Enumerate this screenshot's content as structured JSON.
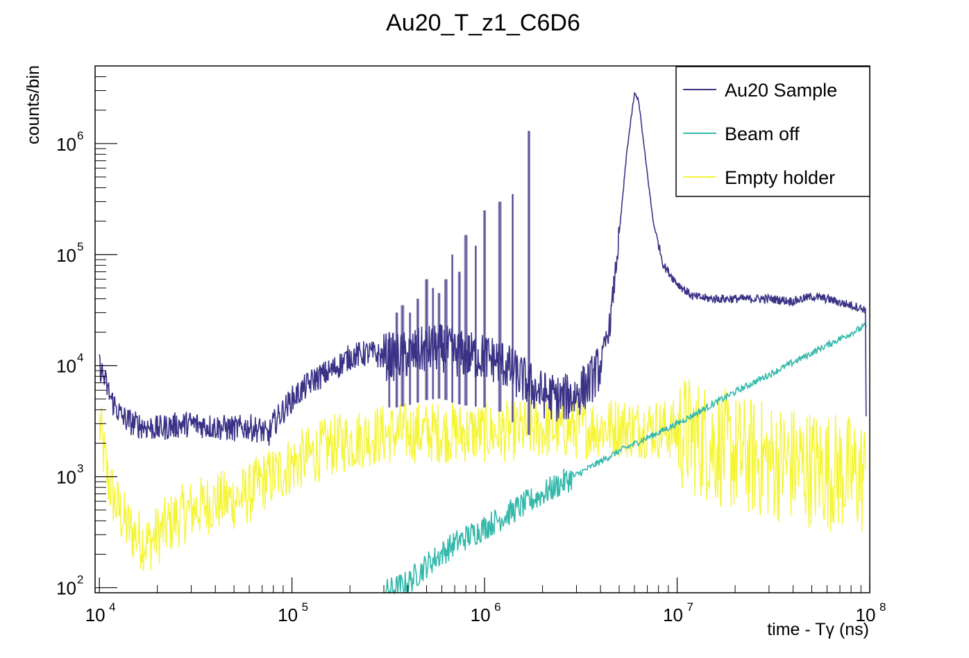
{
  "chart_data": {
    "type": "line",
    "title": "Au20_T_z1_C6D6",
    "xlabel": "time - Tγ (ns)",
    "ylabel": "counts/bin",
    "xscale": "log",
    "yscale": "log",
    "xlim": [
      9500,
      100000000
    ],
    "ylim": [
      90,
      5000000
    ],
    "x_ticks": [
      {
        "value": 10000,
        "base": "10",
        "exp": "4"
      },
      {
        "value": 100000,
        "base": "10",
        "exp": "5"
      },
      {
        "value": 1000000,
        "base": "10",
        "exp": "6"
      },
      {
        "value": 10000000,
        "base": "10",
        "exp": "7"
      },
      {
        "value": 100000000,
        "base": "10",
        "exp": "8"
      }
    ],
    "y_ticks": [
      {
        "value": 100,
        "base": "10",
        "exp": "2"
      },
      {
        "value": 1000,
        "base": "10",
        "exp": "3"
      },
      {
        "value": 10000,
        "base": "10",
        "exp": "4"
      },
      {
        "value": 100000,
        "base": "10",
        "exp": "5"
      },
      {
        "value": 1000000,
        "base": "10",
        "exp": "6"
      }
    ],
    "legend": {
      "position": "top-right"
    },
    "series": [
      {
        "name": "Au20 Sample",
        "color": "#3b3286",
        "fill_color": "#8d88b6",
        "x": [
          10000,
          10500,
          11500,
          13000,
          15000,
          18000,
          20000,
          25000,
          30000,
          40000,
          50000,
          60000,
          70000,
          75000,
          80000,
          100000,
          130000,
          160000,
          200000,
          250000,
          300000,
          350000,
          400000,
          500000,
          600000,
          700000,
          800000,
          1000000,
          1200000,
          1500000,
          2000000,
          2500000,
          3000000,
          3500000,
          4000000,
          4500000,
          5000000,
          5500000,
          6000000,
          6300000,
          6700000,
          7500000,
          8500000,
          10000000,
          12000000,
          15000000,
          20000000,
          30000000,
          40000000,
          50000000,
          60000000,
          70000000,
          80000000,
          90000000,
          95000000
        ],
        "values": [
          10000,
          8000,
          5000,
          3500,
          3000,
          2800,
          2700,
          2900,
          3000,
          2800,
          2700,
          2800,
          2600,
          2300,
          3000,
          5000,
          7500,
          9000,
          12000,
          13000,
          12000,
          12000,
          12500,
          14000,
          14500,
          13000,
          12500,
          12000,
          11000,
          8000,
          5500,
          5000,
          5500,
          7000,
          10000,
          25000,
          150000,
          900000,
          2800000,
          2500000,
          1000000,
          200000,
          80000,
          55000,
          42000,
          40000,
          40000,
          40000,
          38000,
          42000,
          40000,
          37000,
          35000,
          33000,
          32000
        ]
      },
      {
        "name": "Beam off",
        "color": "#35b9ab",
        "x": [
          300000,
          400000,
          500000,
          700000,
          1000000,
          2000000,
          5000000,
          10000000,
          20000000,
          50000000,
          96000000
        ],
        "values": [
          90,
          110,
          160,
          250,
          350,
          700,
          1700,
          3000,
          5800,
          13000,
          23000
        ]
      },
      {
        "name": "Empty holder",
        "color": "#f5f536",
        "x": [
          10000,
          11000,
          12000,
          14000,
          16000,
          18000,
          20000,
          25000,
          30000,
          40000,
          50000,
          60000,
          70000,
          80000,
          100000,
          130000,
          160000,
          200000,
          250000,
          300000,
          400000,
          500000,
          700000,
          1000000,
          1500000,
          2000000,
          3000000,
          4000000,
          5000000,
          6000000,
          7000000,
          8000000,
          10000000,
          15000000,
          20000000,
          30000000,
          50000000,
          70000000,
          90000000,
          95000000
        ],
        "values": [
          3000,
          1000,
          600,
          350,
          280,
          250,
          300,
          420,
          500,
          600,
          620,
          700,
          900,
          1000,
          1300,
          1600,
          1900,
          2100,
          2300,
          2400,
          2500,
          2500,
          2500,
          2500,
          2600,
          2700,
          2700,
          2800,
          2800,
          2700,
          2800,
          2700,
          2600,
          2000,
          1600,
          1400,
          1200,
          1100,
          1000,
          1000
        ]
      }
    ]
  }
}
